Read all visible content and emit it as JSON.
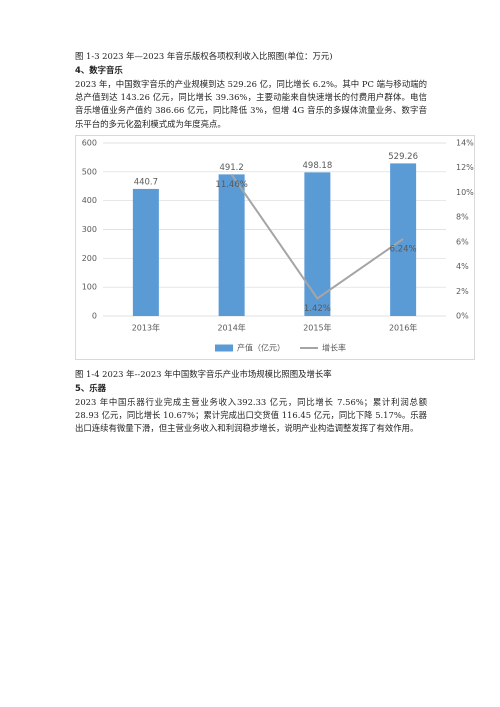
{
  "caption_top": "图 1-3 2023 年—2023 年音乐版权各项权利收入比照图(单位：万元)",
  "section4": {
    "heading": "4、数字音乐",
    "paragraph": "2023 年，中国数字音乐的产业规模到达 529.26 亿，同比增长 6.2%。其中 PC 端与移动端的总产值到达 143.26 亿元，同比增长 39.36%，主要动能来自快速增长的付费用户群体。电信音乐增值业务产值约 386.66 亿元，同比降低 3%，但增 4G 音乐的多媒体流量业务、数字音乐平台的多元化盈利模式成为年度亮点。"
  },
  "chart_data": {
    "type": "bar_line",
    "categories": [
      "2013年",
      "2014年",
      "2015年",
      "2016年"
    ],
    "series": [
      {
        "name": "产值（亿元）",
        "color": "#5b9bd5",
        "values": [
          440.7,
          491.2,
          498.18,
          529.26
        ]
      },
      {
        "name": "增长率",
        "color": "#a5a5a5",
        "axis": "y2",
        "values": [
          null,
          11.46,
          1.42,
          6.24
        ],
        "value_labels": [
          null,
          "11.46%",
          "1.42%",
          "6.24%"
        ]
      }
    ],
    "ylim": [
      0,
      600
    ],
    "yticks": [
      0,
      100,
      200,
      300,
      400,
      500,
      600
    ],
    "y2lim": [
      0,
      14
    ],
    "y2ticks": [
      {
        "value": 0,
        "label": "0%"
      },
      {
        "value": 2,
        "label": "2%"
      },
      {
        "value": 4,
        "label": "4%"
      },
      {
        "value": 6,
        "label": "6%"
      },
      {
        "value": 8,
        "label": "8%"
      },
      {
        "value": 10,
        "label": "10%"
      },
      {
        "value": 12,
        "label": "12%"
      },
      {
        "value": 14,
        "label": "14%"
      }
    ],
    "grid": true,
    "legend": "bottom"
  },
  "caption_chart": "图 1-4 2023 年--2023 年中国数字音乐产业市场规模比照图及增长率",
  "section5": {
    "heading": "5、乐器",
    "paragraph": "2023 年中国乐器行业完成主营业务收入392.33 亿元，同比增长 7.56%；累计利润总额 28.93 亿元，同比增长 10.67%；累计完成出口交货值 116.45 亿元，同比下降 5.17%。乐器出口连续有微量下滑，但主营业务收入和利润稳步增长，说明产业构造调整发挥了有效作用。"
  }
}
